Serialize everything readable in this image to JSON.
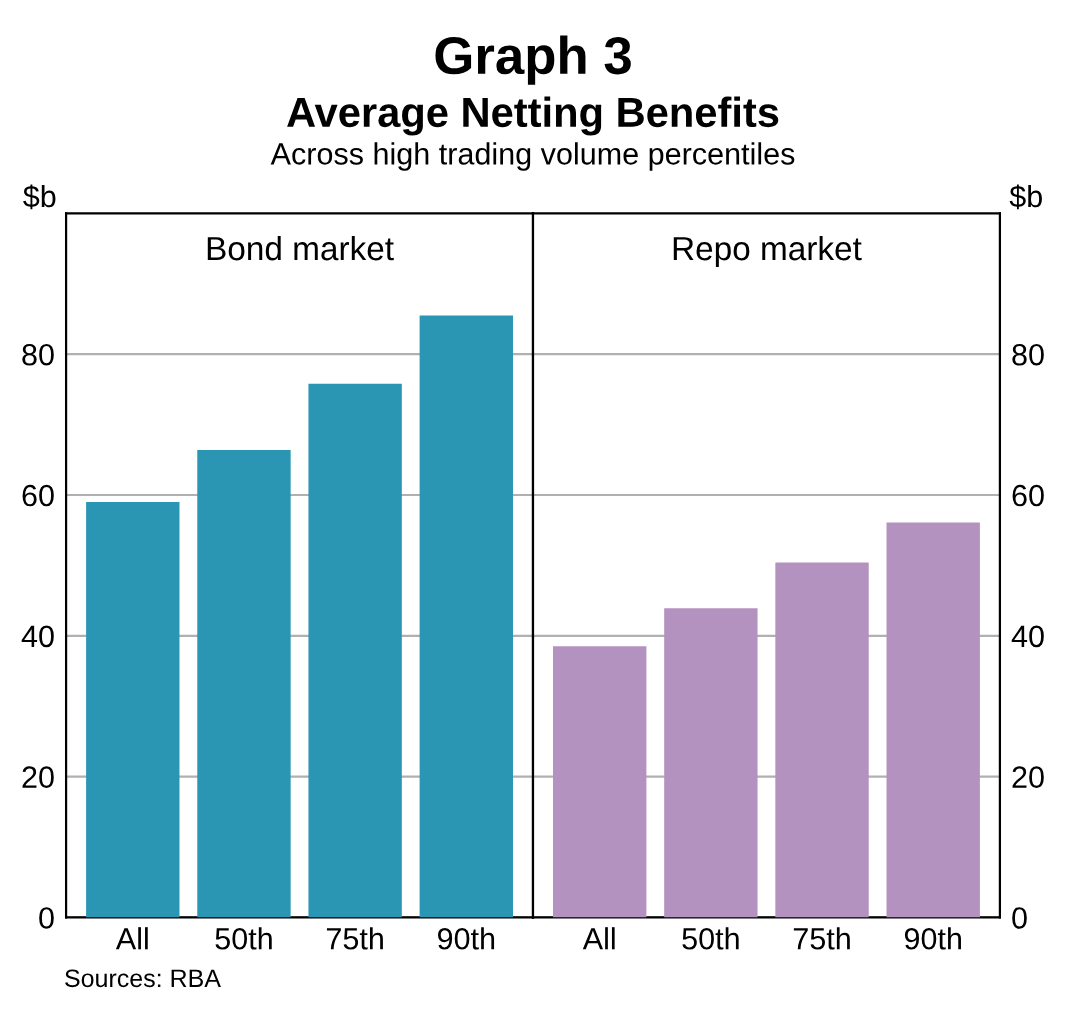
{
  "chart_data": [
    {
      "type": "bar",
      "title": "Bond market",
      "categories": [
        "All",
        "50th",
        "75th",
        "90th"
      ],
      "series": [
        {
          "color": "#2a96b4",
          "values": [
            59,
            66.4,
            75.8,
            85.5
          ]
        }
      ],
      "ylim": [
        0,
        100
      ],
      "yticks": [
        0,
        20,
        40,
        60,
        80
      ],
      "ylabel": "$b",
      "grid": "y",
      "annotations": [
        "Graph 3",
        "Average Netting Benefits",
        "Across high trading volume percentiles",
        "Sources: RBA"
      ]
    },
    {
      "type": "bar",
      "title": "Repo market",
      "categories": [
        "All",
        "50th",
        "75th",
        "90th"
      ],
      "series": [
        {
          "color": "#b492bf",
          "values": [
            38.5,
            43.9,
            50.4,
            56.1
          ],
          "axis": "y2"
        }
      ],
      "y2lim": [
        0,
        100
      ],
      "y2ticks": [
        0,
        20,
        40,
        60,
        80
      ],
      "y2label": "$b",
      "grid": "y"
    }
  ]
}
